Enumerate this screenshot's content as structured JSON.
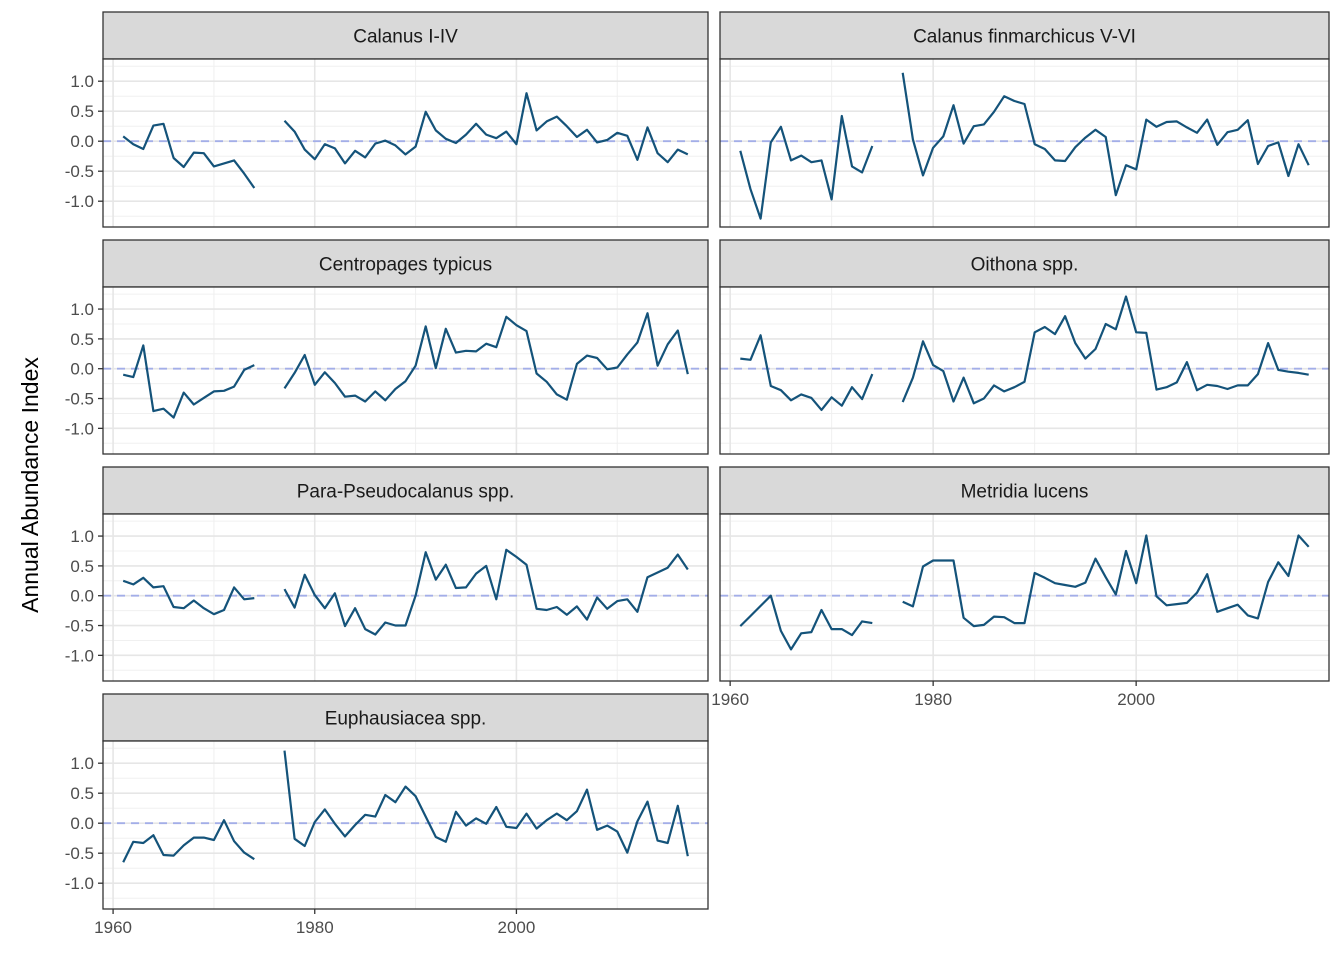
{
  "ylabel": "Annual Abundance Index",
  "chart_data": {
    "type": "line",
    "layout": "faceted 2 columns x 4 rows",
    "ylabel": "Annual Abundance Index",
    "xlabel": "",
    "xlim": [
      1959,
      2019
    ],
    "ylim": [
      -1.43,
      1.37
    ],
    "x_ticks": [
      1960,
      1980,
      2000
    ],
    "y_ticks": [
      -1.0,
      -0.5,
      0.0,
      0.5,
      1.0
    ],
    "y_tick_labels": [
      "-1.0",
      "-0.5",
      "0.0",
      "0.5",
      "1.0"
    ],
    "reference_line": 0,
    "grid": true,
    "line_color": "#14537a",
    "reference_color": "#a3aee8",
    "strip_color": "#d9d9d9",
    "facets": [
      {
        "name": "Calanus I-IV",
        "segments": [
          {
            "x": [
              1961,
              1962,
              1963,
              1964,
              1965,
              1966,
              1967,
              1968,
              1969,
              1970,
              1971,
              1972,
              1973,
              1974
            ],
            "y": [
              0.08,
              -0.05,
              -0.13,
              0.26,
              0.29,
              -0.28,
              -0.43,
              -0.19,
              -0.2,
              -0.42,
              -0.37,
              -0.32,
              -0.54,
              -0.78
            ]
          },
          {
            "x": [
              1977,
              1978,
              1979,
              1980,
              1981,
              1982,
              1983,
              1984,
              1985,
              1986,
              1987,
              1988,
              1989,
              1990,
              1991,
              1992,
              1993,
              1994,
              1995,
              1996,
              1997,
              1998,
              1999,
              2000,
              2001,
              2002,
              2003,
              2004,
              2005,
              2006,
              2007,
              2008,
              2009,
              2010,
              2011,
              2012,
              2013,
              2014,
              2015,
              2016,
              2017
            ],
            "y": [
              0.34,
              0.16,
              -0.14,
              -0.3,
              -0.05,
              -0.12,
              -0.37,
              -0.16,
              -0.27,
              -0.04,
              0.01,
              -0.07,
              -0.22,
              -0.09,
              0.49,
              0.18,
              0.04,
              -0.03,
              0.11,
              0.29,
              0.11,
              0.05,
              0.16,
              -0.05,
              0.8,
              0.18,
              0.33,
              0.41,
              0.25,
              0.07,
              0.19,
              -0.02,
              0.02,
              0.14,
              0.09,
              -0.31,
              0.23,
              -0.2,
              -0.35,
              -0.14,
              -0.22
            ]
          }
        ]
      },
      {
        "name": "Calanus finmarchicus V-VI",
        "segments": [
          {
            "x": [
              1961,
              1962,
              1963,
              1964,
              1965,
              1966,
              1967,
              1968,
              1969,
              1970,
              1971,
              1972,
              1973,
              1974
            ],
            "y": [
              -0.16,
              -0.8,
              -1.29,
              -0.02,
              0.24,
              -0.32,
              -0.24,
              -0.35,
              -0.32,
              -0.97,
              0.42,
              -0.42,
              -0.52,
              -0.08
            ]
          },
          {
            "x": [
              1977,
              1978,
              1979,
              1980,
              1981,
              1982,
              1983,
              1984,
              1985,
              1986,
              1987,
              1988,
              1989,
              1990,
              1991,
              1992,
              1993,
              1994,
              1995,
              1996,
              1997,
              1998,
              1999,
              2000,
              2001,
              2002,
              2003,
              2004,
              2005,
              2006,
              2007,
              2008,
              2009,
              2010,
              2011,
              2012,
              2013,
              2014,
              2015,
              2016,
              2017
            ],
            "y": [
              1.14,
              0.03,
              -0.57,
              -0.11,
              0.08,
              0.6,
              -0.04,
              0.25,
              0.28,
              0.49,
              0.75,
              0.67,
              0.62,
              -0.05,
              -0.13,
              -0.32,
              -0.33,
              -0.1,
              0.06,
              0.19,
              0.07,
              -0.9,
              -0.4,
              -0.47,
              0.36,
              0.24,
              0.32,
              0.33,
              0.23,
              0.14,
              0.36,
              -0.06,
              0.15,
              0.19,
              0.35,
              -0.38,
              -0.08,
              -0.02,
              -0.58,
              -0.05,
              -0.4
            ]
          }
        ]
      },
      {
        "name": "Centropages typicus",
        "segments": [
          {
            "x": [
              1961,
              1962,
              1963,
              1964,
              1965,
              1966,
              1967,
              1968,
              1969,
              1970,
              1971,
              1972,
              1973,
              1974
            ],
            "y": [
              -0.1,
              -0.14,
              0.39,
              -0.71,
              -0.67,
              -0.82,
              -0.4,
              -0.6,
              -0.49,
              -0.38,
              -0.37,
              -0.3,
              -0.02,
              0.06
            ]
          },
          {
            "x": [
              1977,
              1978,
              1979,
              1980,
              1981,
              1982,
              1983,
              1984,
              1985,
              1986,
              1987,
              1988,
              1989,
              1990,
              1991,
              1992,
              1993,
              1994,
              1995,
              1996,
              1997,
              1998,
              1999,
              2000,
              2001,
              2002,
              2003,
              2004,
              2005,
              2006,
              2007,
              2008,
              2009,
              2010,
              2011,
              2012,
              2013,
              2014,
              2015,
              2016,
              2017
            ],
            "y": [
              -0.33,
              -0.07,
              0.23,
              -0.27,
              -0.06,
              -0.24,
              -0.47,
              -0.45,
              -0.55,
              -0.38,
              -0.53,
              -0.34,
              -0.21,
              0.05,
              0.71,
              0.01,
              0.67,
              0.27,
              0.3,
              0.29,
              0.42,
              0.36,
              0.87,
              0.73,
              0.63,
              -0.08,
              -0.22,
              -0.43,
              -0.52,
              0.08,
              0.22,
              0.18,
              -0.01,
              0.02,
              0.24,
              0.44,
              0.93,
              0.05,
              0.41,
              0.64,
              -0.09
            ]
          }
        ]
      },
      {
        "name": "Oithona spp.",
        "segments": [
          {
            "x": [
              1961,
              1962,
              1963,
              1964,
              1965,
              1966,
              1967,
              1968,
              1969,
              1970,
              1971,
              1972,
              1973,
              1974
            ],
            "y": [
              0.17,
              0.15,
              0.56,
              -0.29,
              -0.36,
              -0.53,
              -0.43,
              -0.49,
              -0.69,
              -0.48,
              -0.62,
              -0.31,
              -0.51,
              -0.09
            ]
          },
          {
            "x": [
              1977,
              1978,
              1979,
              1980,
              1981,
              1982,
              1983,
              1984,
              1985,
              1986,
              1987,
              1988,
              1989,
              1990,
              1991,
              1992,
              1993,
              1994,
              1995,
              1996,
              1997,
              1998,
              1999,
              2000,
              2001,
              2002,
              2003,
              2004,
              2005,
              2006,
              2007,
              2008,
              2009,
              2010,
              2011,
              2012,
              2013,
              2014,
              2015,
              2016,
              2017
            ],
            "y": [
              -0.56,
              -0.15,
              0.46,
              0.06,
              -0.04,
              -0.55,
              -0.15,
              -0.58,
              -0.5,
              -0.28,
              -0.38,
              -0.31,
              -0.22,
              0.61,
              0.7,
              0.58,
              0.88,
              0.43,
              0.17,
              0.33,
              0.75,
              0.66,
              1.21,
              0.61,
              0.6,
              -0.35,
              -0.31,
              -0.23,
              0.11,
              -0.36,
              -0.27,
              -0.29,
              -0.34,
              -0.28,
              -0.28,
              -0.09,
              0.43,
              -0.02,
              -0.05,
              -0.07,
              -0.1
            ]
          }
        ]
      },
      {
        "name": "Para-Pseudocalanus spp.",
        "segments": [
          {
            "x": [
              1961,
              1962,
              1963,
              1964,
              1965,
              1966,
              1967,
              1968,
              1969,
              1970,
              1971,
              1972,
              1973,
              1974
            ],
            "y": [
              0.25,
              0.19,
              0.3,
              0.14,
              0.16,
              -0.19,
              -0.21,
              -0.08,
              -0.21,
              -0.31,
              -0.24,
              0.14,
              -0.06,
              -0.04
            ]
          },
          {
            "x": [
              1977,
              1978,
              1979,
              1980,
              1981,
              1982,
              1983,
              1984,
              1985,
              1986,
              1987,
              1988,
              1989,
              1990,
              1991,
              1992,
              1993,
              1994,
              1995,
              1996,
              1997,
              1998,
              1999,
              2000,
              2001,
              2002,
              2003,
              2004,
              2005,
              2006,
              2007,
              2008,
              2009,
              2010,
              2011,
              2012,
              2013,
              2014,
              2015,
              2016,
              2017
            ],
            "y": [
              0.11,
              -0.2,
              0.35,
              0.01,
              -0.21,
              0.04,
              -0.51,
              -0.21,
              -0.56,
              -0.65,
              -0.45,
              -0.5,
              -0.5,
              0.0,
              0.73,
              0.27,
              0.52,
              0.13,
              0.14,
              0.37,
              0.5,
              -0.06,
              0.77,
              0.65,
              0.52,
              -0.22,
              -0.24,
              -0.19,
              -0.32,
              -0.18,
              -0.4,
              -0.03,
              -0.22,
              -0.09,
              -0.06,
              -0.27,
              0.31,
              0.39,
              0.47,
              0.69,
              0.44
            ]
          }
        ]
      },
      {
        "name": "Metridia lucens",
        "segments": [
          {
            "x": [
              1961,
              1962,
              1963,
              1964,
              1965,
              1966,
              1967,
              1968,
              1969,
              1970,
              1971,
              1972,
              1973,
              1974
            ],
            "y": [
              -0.51,
              -0.34,
              -0.17,
              0.0,
              -0.59,
              -0.9,
              -0.63,
              -0.61,
              -0.24,
              -0.56,
              -0.56,
              -0.66,
              -0.43,
              -0.46
            ]
          },
          {
            "x": [
              1977,
              1978,
              1979,
              1980,
              1981,
              1982,
              1983,
              1984,
              1985,
              1986,
              1987,
              1988,
              1989,
              1990,
              1991,
              1992,
              1993,
              1994,
              1995,
              1996,
              1997,
              1998,
              1999,
              2000,
              2001,
              2002,
              2003,
              2004,
              2005,
              2006,
              2007,
              2008,
              2009,
              2010,
              2011,
              2012,
              2013,
              2014,
              2015,
              2016,
              2017
            ],
            "y": [
              -0.1,
              -0.18,
              0.49,
              0.59,
              0.59,
              0.59,
              -0.37,
              -0.51,
              -0.49,
              -0.35,
              -0.36,
              -0.46,
              -0.46,
              0.38,
              0.3,
              0.21,
              0.18,
              0.15,
              0.22,
              0.62,
              0.31,
              0.02,
              0.75,
              0.21,
              1.01,
              -0.01,
              -0.16,
              -0.14,
              -0.12,
              0.05,
              0.36,
              -0.27,
              -0.21,
              -0.15,
              -0.33,
              -0.38,
              0.23,
              0.56,
              0.33,
              1.01,
              0.82
            ]
          }
        ]
      },
      {
        "name": "Euphausiacea spp.",
        "segments": [
          {
            "x": [
              1961,
              1962,
              1963,
              1964,
              1965,
              1966,
              1967,
              1968,
              1969,
              1970,
              1971,
              1972,
              1973,
              1974
            ],
            "y": [
              -0.65,
              -0.31,
              -0.33,
              -0.2,
              -0.53,
              -0.54,
              -0.37,
              -0.24,
              -0.24,
              -0.28,
              0.05,
              -0.3,
              -0.49,
              -0.6
            ]
          },
          {
            "x": [
              1977,
              1978,
              1979,
              1980,
              1981,
              1982,
              1983,
              1984,
              1985,
              1986,
              1987,
              1988,
              1989,
              1990,
              1991,
              1992,
              1993,
              1994,
              1995,
              1996,
              1997,
              1998,
              1999,
              2000,
              2001,
              2002,
              2003,
              2004,
              2005,
              2006,
              2007,
              2008,
              2009,
              2010,
              2011,
              2012,
              2013,
              2014,
              2015,
              2016,
              2017
            ],
            "y": [
              1.21,
              -0.26,
              -0.38,
              0.02,
              0.23,
              -0.01,
              -0.22,
              -0.03,
              0.14,
              0.11,
              0.47,
              0.35,
              0.61,
              0.45,
              0.11,
              -0.23,
              -0.31,
              0.19,
              -0.04,
              0.08,
              -0.01,
              0.27,
              -0.06,
              -0.08,
              0.16,
              -0.09,
              0.05,
              0.16,
              0.05,
              0.2,
              0.56,
              -0.11,
              -0.04,
              -0.14,
              -0.49,
              0.03,
              0.36,
              -0.29,
              -0.33,
              0.29,
              -0.55
            ]
          }
        ]
      }
    ]
  }
}
